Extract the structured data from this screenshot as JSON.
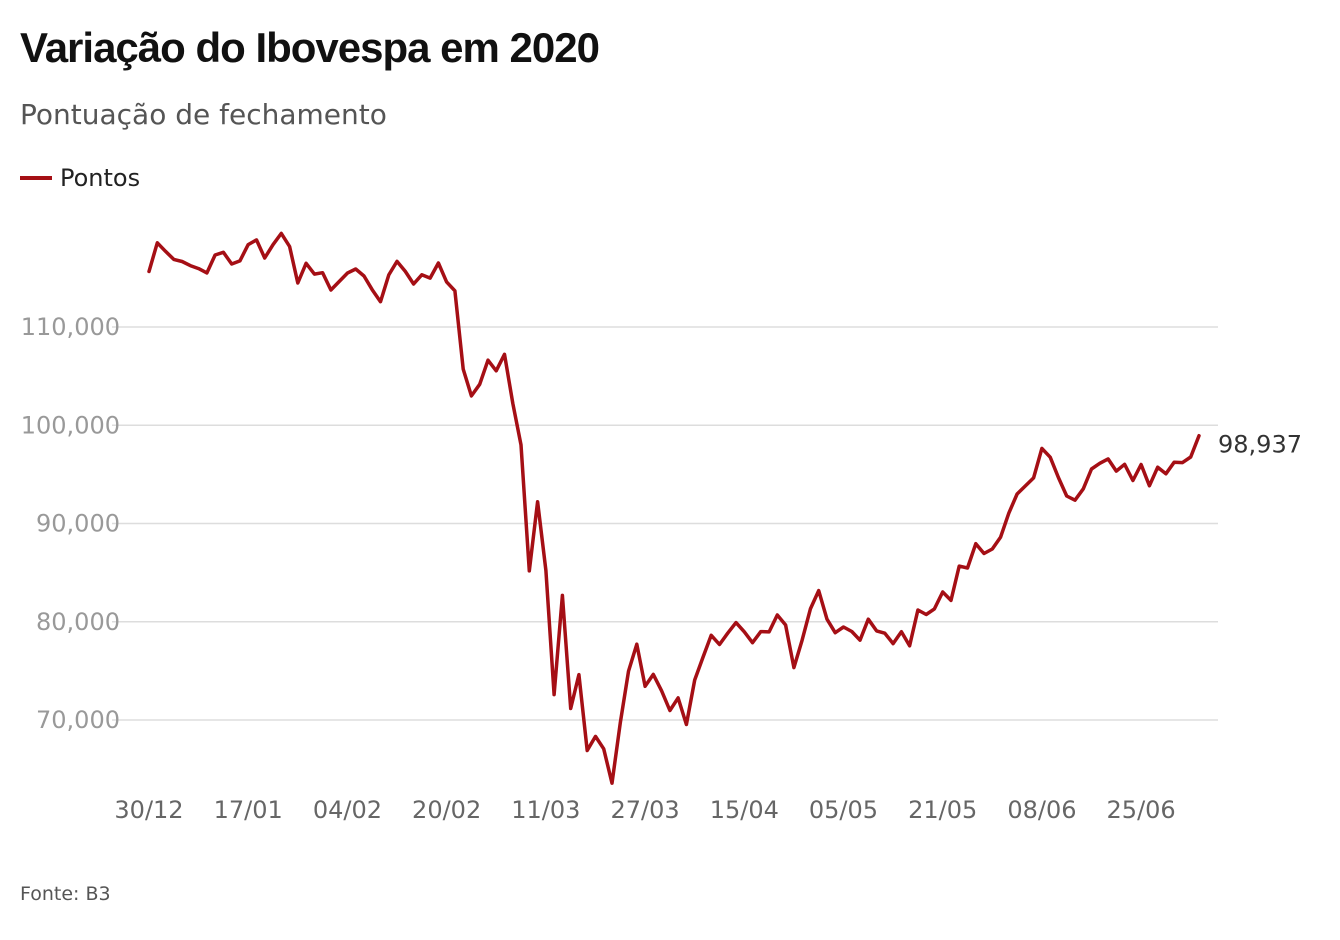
{
  "header": {
    "title": "Variação do Ibovespa em 2020",
    "subtitle": "Pontuação de fechamento"
  },
  "footer": {
    "source": "Fonte: B3"
  },
  "chart_data": {
    "type": "line",
    "title": "Variação do Ibovespa em 2020",
    "subtitle": "Pontuação de fechamento",
    "xlabel": "",
    "ylabel": "",
    "ylim": [
      63000,
      121000
    ],
    "y_ticks": [
      70000,
      80000,
      90000,
      100000,
      110000
    ],
    "y_tick_labels": [
      "70,000",
      "80,000",
      "90,000",
      "100,000",
      "110,000"
    ],
    "x_tick_labels": [
      "30/12",
      "17/01",
      "04/02",
      "20/02",
      "11/03",
      "27/03",
      "15/04",
      "05/05",
      "21/05",
      "08/06",
      "25/06"
    ],
    "x_tick_indices": [
      0,
      12,
      24,
      36,
      48,
      60,
      72,
      84,
      96,
      108,
      120
    ],
    "grid": true,
    "legend_position": "top-left",
    "end_label": "98,937",
    "colors": {
      "line": "#a50f15",
      "grid": "#dddddd",
      "axis_text": "#999999",
      "xaxis_text": "#666666",
      "end_label": "#333333"
    },
    "series": [
      {
        "name": "Pontos",
        "values": [
          115645,
          118573,
          117707,
          116878,
          116662,
          116247,
          115947,
          115503,
          117325,
          117601,
          116414,
          116725,
          118391,
          118862,
          117026,
          118376,
          119528,
          118198,
          114482,
          116479,
          115384,
          115528,
          113761,
          114629,
          115491,
          115904,
          115189,
          113800,
          112570,
          115300,
          116674,
          115662,
          114381,
          115309,
          114977,
          116518,
          114587,
          113681,
          105718,
          102984,
          104172,
          106625,
          105537,
          107224,
          102233,
          97997,
          85171,
          92214,
          85221,
          72583,
          82678,
          71168,
          74617,
          66895,
          68332,
          67069,
          63570,
          69729,
          74955,
          77710,
          73429,
          74640,
          72969,
          70967,
          72253,
          69538,
          74073,
          76358,
          78625,
          77682,
          78831,
          79918,
          78973,
          77871,
          78993,
          78972,
          80687,
          79673,
          75331,
          78119,
          81312,
          83171,
          80263,
          78890,
          79465,
          79011,
          78118,
          80263,
          79064,
          78832,
          77772,
          78990,
          77557,
          81194,
          80743,
          81312,
          83027,
          82174,
          85663,
          85469,
          87946,
          86949,
          87403,
          88620,
          91046,
          93002,
          93828,
          94638,
          97645,
          96746,
          94686,
          92795,
          92375,
          93531,
          95547,
          96125,
          96572,
          95336,
          96025,
          94377,
          96005,
          93834,
          95735,
          95055,
          96235,
          96203,
          96765,
          98937
        ]
      }
    ]
  }
}
